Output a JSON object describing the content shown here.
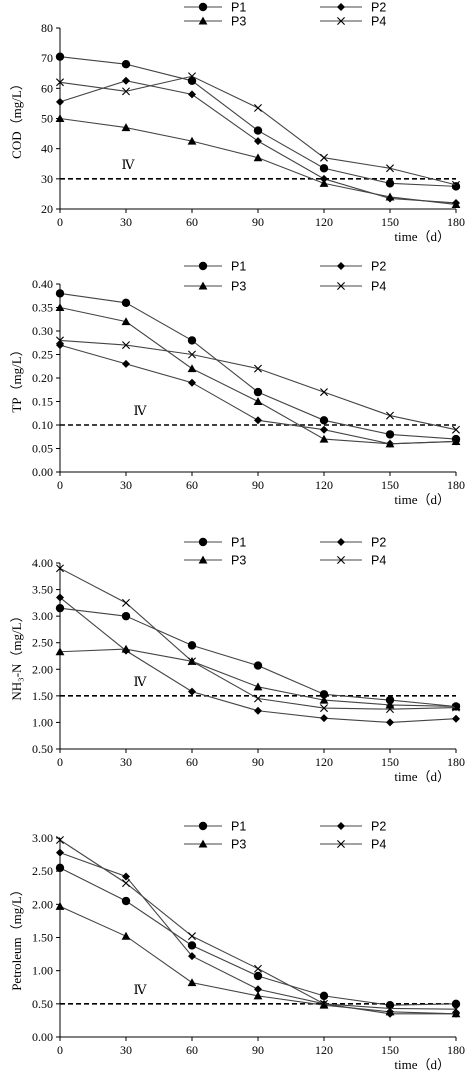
{
  "chart_data": [
    {
      "type": "line",
      "ylabel": "COD（mg/L）",
      "xlabel": "time（d）",
      "x": [
        0,
        30,
        60,
        90,
        120,
        150,
        180
      ],
      "xticks": [
        "0",
        "30",
        "60",
        "90",
        "120",
        "150",
        "180"
      ],
      "ylim": [
        20,
        80
      ],
      "yticks": [
        "20",
        "30",
        "40",
        "50",
        "60",
        "70",
        "80"
      ],
      "reference_line": {
        "value": 30,
        "label": "Ⅳ",
        "style": "dashed"
      },
      "series": [
        {
          "name": "P1",
          "marker": "circle",
          "values": [
            70.5,
            68,
            62.5,
            46,
            33.5,
            28.5,
            27.5
          ]
        },
        {
          "name": "P2",
          "marker": "diamond",
          "values": [
            55.5,
            62.5,
            58,
            42.5,
            30,
            23.5,
            22
          ]
        },
        {
          "name": "P3",
          "marker": "triangle",
          "values": [
            50,
            47,
            42.5,
            37,
            28.5,
            24,
            21.5
          ]
        },
        {
          "name": "P4",
          "marker": "x",
          "values": [
            62,
            59,
            64,
            53.5,
            37,
            33.5,
            28
          ]
        }
      ]
    },
    {
      "type": "line",
      "ylabel": "TP（mg/L）",
      "xlabel": "time（d）",
      "x": [
        0,
        30,
        60,
        90,
        120,
        150,
        180
      ],
      "xticks": [
        "0",
        "30",
        "60",
        "90",
        "120",
        "150",
        "180"
      ],
      "ylim": [
        0,
        0.4
      ],
      "yticks": [
        "0.00",
        "0.05",
        "0.10",
        "0.15",
        "0.20",
        "0.25",
        "0.30",
        "0.35",
        "0.40"
      ],
      "reference_line": {
        "value": 0.1,
        "label": "Ⅳ",
        "style": "dashed"
      },
      "series": [
        {
          "name": "P1",
          "marker": "circle",
          "values": [
            0.38,
            0.36,
            0.28,
            0.17,
            0.11,
            0.08,
            0.07
          ]
        },
        {
          "name": "P2",
          "marker": "diamond",
          "values": [
            0.27,
            0.23,
            0.19,
            0.11,
            0.09,
            0.06,
            0.065
          ]
        },
        {
          "name": "P3",
          "marker": "triangle",
          "values": [
            0.35,
            0.32,
            0.22,
            0.15,
            0.07,
            0.06,
            0.065
          ]
        },
        {
          "name": "P4",
          "marker": "x",
          "values": [
            0.28,
            0.27,
            0.25,
            0.22,
            0.17,
            0.12,
            0.09
          ]
        }
      ]
    },
    {
      "type": "line",
      "ylabel": "NH₃-N（mg/L）",
      "xlabel": "time（d）",
      "x": [
        0,
        30,
        60,
        90,
        120,
        150,
        180
      ],
      "xticks": [
        "0",
        "30",
        "60",
        "90",
        "120",
        "150",
        "180"
      ],
      "ylim": [
        0.5,
        4.0
      ],
      "yticks": [
        "0.50",
        "1.00",
        "1.50",
        "2.00",
        "2.50",
        "3.00",
        "3.50",
        "4.00"
      ],
      "reference_line": {
        "value": 1.5,
        "label": "Ⅳ",
        "style": "dashed"
      },
      "series": [
        {
          "name": "P1",
          "marker": "circle",
          "values": [
            3.15,
            3.0,
            2.45,
            2.07,
            1.53,
            1.42,
            1.3
          ]
        },
        {
          "name": "P2",
          "marker": "diamond",
          "values": [
            3.35,
            2.35,
            1.58,
            1.22,
            1.08,
            1.0,
            1.07
          ]
        },
        {
          "name": "P3",
          "marker": "triangle",
          "values": [
            2.33,
            2.38,
            2.15,
            1.67,
            1.42,
            1.33,
            1.3
          ]
        },
        {
          "name": "P4",
          "marker": "x",
          "values": [
            3.9,
            3.25,
            2.15,
            1.45,
            1.27,
            1.25,
            1.28
          ]
        }
      ]
    },
    {
      "type": "line",
      "ylabel": "Petroleum（mg/L）",
      "xlabel": "time（d）",
      "x": [
        0,
        30,
        60,
        90,
        120,
        150,
        180
      ],
      "xticks": [
        "0",
        "30",
        "60",
        "90",
        "120",
        "150",
        "180"
      ],
      "ylim": [
        0,
        3.0
      ],
      "yticks": [
        "0.00",
        "0.50",
        "1.00",
        "1.50",
        "2.00",
        "2.50",
        "3.00"
      ],
      "reference_line": {
        "value": 0.5,
        "label": "Ⅳ",
        "style": "dashed"
      },
      "series": [
        {
          "name": "P1",
          "marker": "circle",
          "values": [
            2.55,
            2.05,
            1.38,
            0.92,
            0.62,
            0.48,
            0.5
          ]
        },
        {
          "name": "P2",
          "marker": "diamond",
          "values": [
            2.78,
            2.42,
            1.22,
            0.72,
            0.5,
            0.35,
            0.35
          ]
        },
        {
          "name": "P3",
          "marker": "triangle",
          "values": [
            1.97,
            1.52,
            0.82,
            0.62,
            0.48,
            0.38,
            0.35
          ]
        },
        {
          "name": "P4",
          "marker": "x",
          "values": [
            2.97,
            2.32,
            1.52,
            1.03,
            0.5,
            0.43,
            0.42
          ]
        }
      ]
    }
  ]
}
